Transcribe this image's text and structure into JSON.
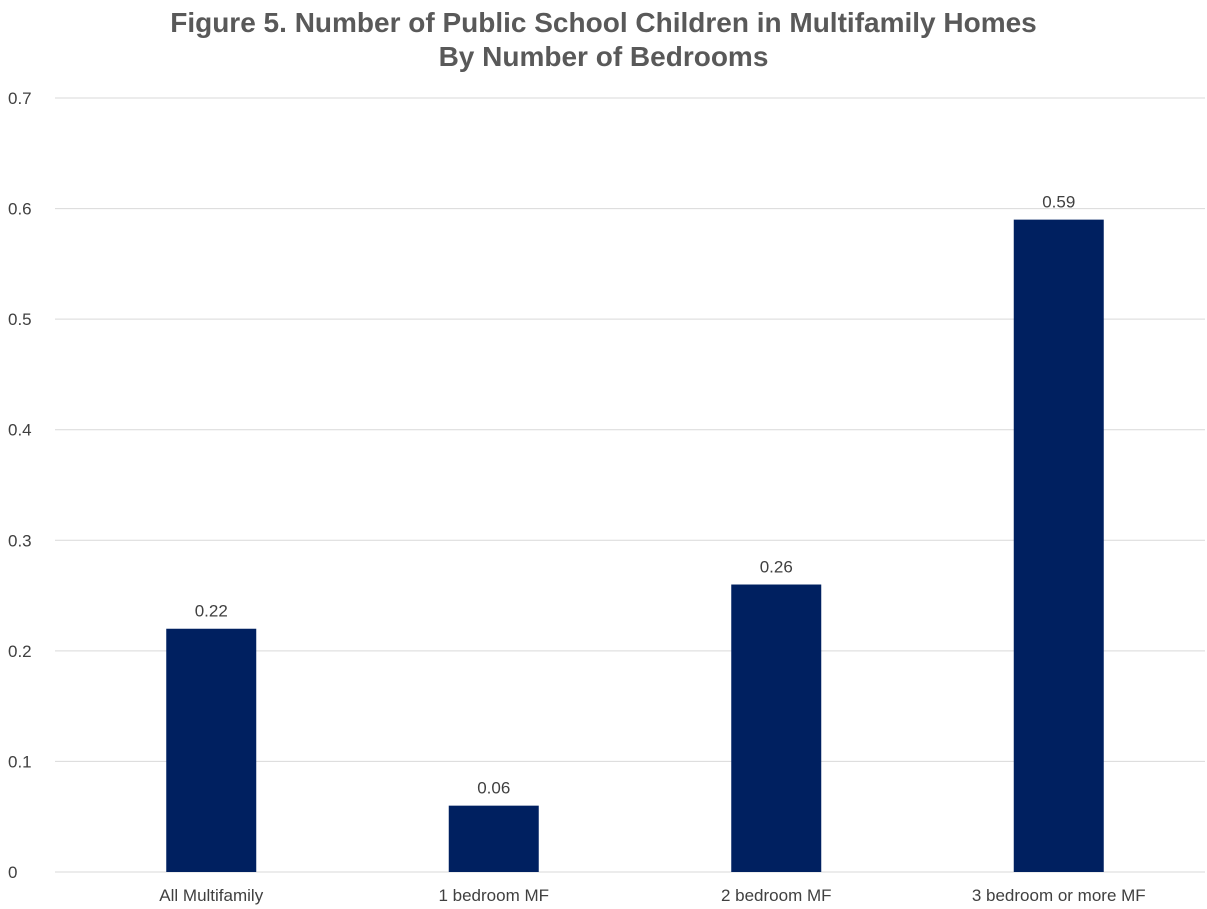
{
  "chart_data": {
    "type": "bar",
    "title": "Figure 5. Number of Public School Children in Multifamily Homes",
    "subtitle": "By Number of Bedrooms",
    "categories": [
      "All Multifamily",
      "1 bedroom MF",
      "2 bedroom MF",
      "3 bedroom or more MF"
    ],
    "values": [
      0.22,
      0.06,
      0.26,
      0.59
    ],
    "data_labels": [
      "0.22",
      "0.06",
      "0.26",
      "0.59"
    ],
    "y_ticks": [
      "0",
      "0.1",
      "0.2",
      "0.3",
      "0.4",
      "0.5",
      "0.6",
      "0.7"
    ],
    "ylim": [
      0,
      0.7
    ],
    "xlabel": "",
    "ylabel": "",
    "grid": true,
    "legend": "none",
    "colors": {
      "bar": "#002060",
      "grid": "#d9d9d9",
      "text": "#404040",
      "title": "#595959"
    }
  }
}
